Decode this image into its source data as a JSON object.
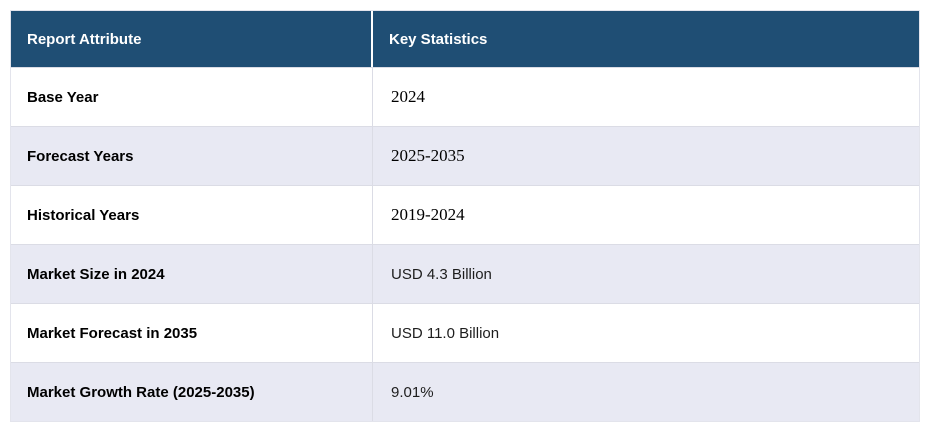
{
  "table": {
    "header": {
      "attribute_label": "Report Attribute",
      "statistics_label": "Key Statistics"
    },
    "rows": [
      {
        "attribute": "Base Year",
        "value": "2024"
      },
      {
        "attribute": "Forecast Years",
        "value": "2025-2035"
      },
      {
        "attribute": "Historical Years",
        "value": "2019-2024"
      },
      {
        "attribute": "Market Size in 2024",
        "value": "USD 4.3 Billion"
      },
      {
        "attribute": "Market Forecast in 2035",
        "value": "USD 11.0 Billion"
      },
      {
        "attribute": "Market Growth Rate (2025-2035)",
        "value": "9.01%"
      }
    ],
    "colors": {
      "header_bg": "#1F4E74",
      "header_text": "#FFFFFF",
      "row_bg": "#FFFFFF",
      "row_alt_bg": "#E8E9F3",
      "border": "#DBDCE5"
    }
  }
}
